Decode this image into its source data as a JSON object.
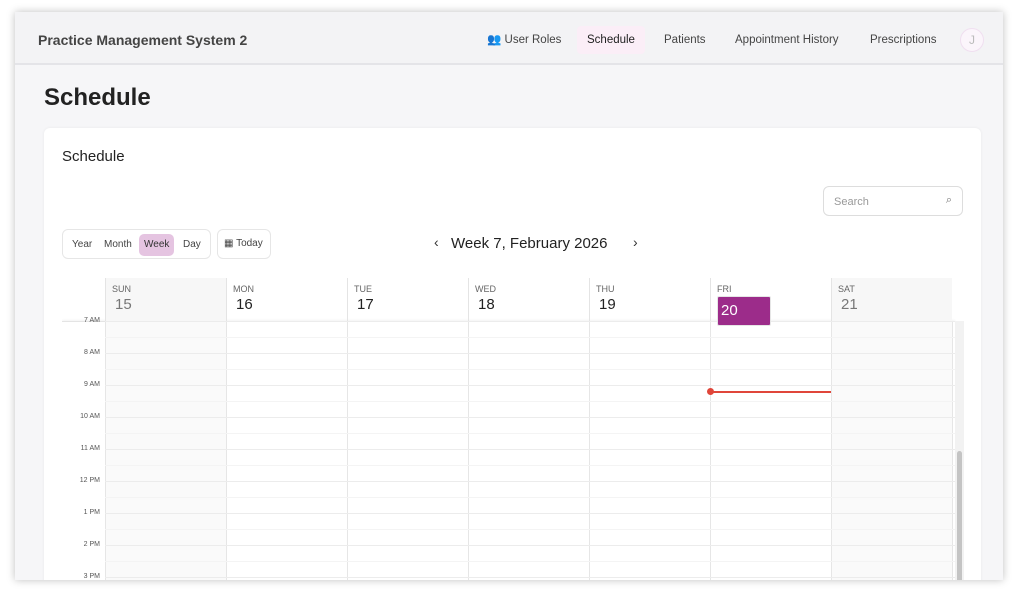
{
  "app": {
    "title": "Practice Management System 2",
    "avatar_initial": "J"
  },
  "nav": [
    {
      "label": "User Roles",
      "icon": "users-icon"
    },
    {
      "label": "Schedule",
      "active": true
    },
    {
      "label": "Patients"
    },
    {
      "label": "Appointment History"
    },
    {
      "label": "Prescriptions"
    }
  ],
  "page": {
    "title": "Schedule"
  },
  "card": {
    "title": "Schedule",
    "search_placeholder": "Search"
  },
  "toolbar": {
    "views": [
      "Year",
      "Month",
      "Week",
      "Day"
    ],
    "active_view": "Week",
    "today_label": "Today",
    "week_label": "Week 7, February 2026"
  },
  "days": [
    {
      "name": "SUN",
      "num": "15",
      "weekend": true
    },
    {
      "name": "MON",
      "num": "16"
    },
    {
      "name": "TUE",
      "num": "17"
    },
    {
      "name": "WED",
      "num": "18"
    },
    {
      "name": "THU",
      "num": "19"
    },
    {
      "name": "FRI",
      "num": "20",
      "today": true
    },
    {
      "name": "SAT",
      "num": "21",
      "weekend": true
    }
  ],
  "times": [
    "7 AM",
    "8 AM",
    "9 AM",
    "10 AM",
    "11 AM",
    "12 PM",
    "1 PM",
    "2 PM",
    "3 PM"
  ],
  "colors": {
    "accent": "#9c2c8a",
    "active_view_bg": "#e5c4e1",
    "now_line": "#e0463a"
  }
}
